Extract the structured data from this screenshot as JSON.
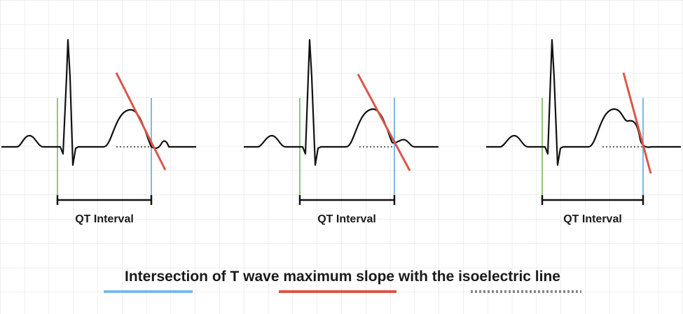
{
  "panels": [
    {
      "label": "QT Interval"
    },
    {
      "label": "QT Interval"
    },
    {
      "label": "QT Interval"
    }
  ],
  "caption": {
    "text": "Intersection of T wave maximum slope with the isoelectric line"
  },
  "colors": {
    "background": "#ffffff",
    "grid": "#dcdcdc",
    "ecg_trace": "#111111",
    "qrs_onset_marker": "#8fc77a",
    "t_end_marker": "#7db9e8",
    "tangent_line": "#d9574a",
    "isoelectric_line": "#666666",
    "interval_bracket": "#111111"
  }
}
